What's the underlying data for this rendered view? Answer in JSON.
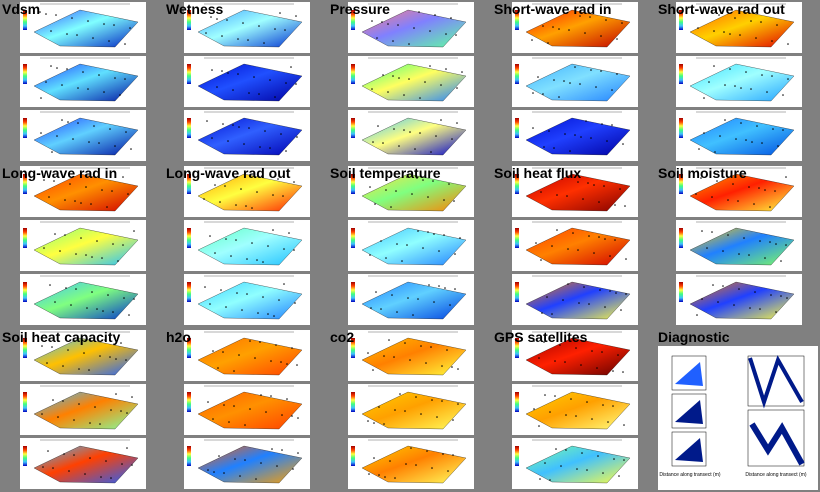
{
  "panels": [
    {
      "title": "Vdsm"
    },
    {
      "title": "Wetness"
    },
    {
      "title": "Pressure"
    },
    {
      "title": "Short-wave rad in"
    },
    {
      "title": "Short-wave rad out"
    },
    {
      "title": "Long-wave rad in"
    },
    {
      "title": "Long-wave rad out"
    },
    {
      "title": "Soil temperature"
    },
    {
      "title": "Soil heat flux"
    },
    {
      "title": "Soil moisture"
    },
    {
      "title": "Soil heat capacity"
    },
    {
      "title": "h2o"
    },
    {
      "title": "co2"
    },
    {
      "title": "GPS satellites"
    },
    {
      "title": "Diagnostic"
    }
  ],
  "diagnostic": {
    "x_label_left": "Distance along transect (m)",
    "x_label_right": "Distance along transect (m)"
  }
}
